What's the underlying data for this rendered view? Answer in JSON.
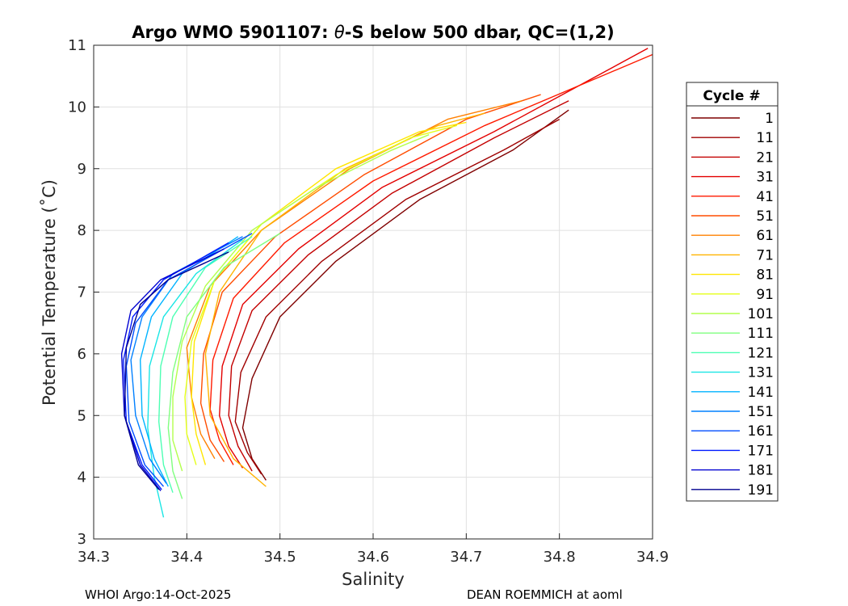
{
  "chart_data": {
    "type": "line",
    "title_prefix": "Argo WMO 5901107: ",
    "title_theta": "θ",
    "title_suffix": "-S below 500 dbar,  QC=(1,2)",
    "xlabel": "Salinity",
    "ylabel": "Potential Temperature (˚C)",
    "xlim": [
      34.3,
      34.9
    ],
    "ylim": [
      3,
      11
    ],
    "xticks": [
      "34.3",
      "34.4",
      "34.5",
      "34.6",
      "34.7",
      "34.8",
      "34.9"
    ],
    "yticks": [
      "3",
      "4",
      "5",
      "6",
      "7",
      "8",
      "9",
      "10",
      "11"
    ],
    "grid": true,
    "legend": {
      "title": "Cycle #",
      "position": "right-outside",
      "entries": [
        "1",
        "11",
        "21",
        "31",
        "41",
        "51",
        "61",
        "71",
        "81",
        "91",
        "101",
        "111",
        "121",
        "131",
        "141",
        "151",
        "161",
        "171",
        "181",
        "191"
      ],
      "colors": [
        "#7f0000",
        "#a00000",
        "#c30000",
        "#e30000",
        "#ff1a00",
        "#ff4d00",
        "#ff8000",
        "#ffb300",
        "#ffe600",
        "#e5ff1a",
        "#b3ff4d",
        "#80ff80",
        "#4dffb3",
        "#1ae6e5",
        "#00b3ff",
        "#0080ff",
        "#004dff",
        "#001aff",
        "#0000d1",
        "#00008f"
      ]
    },
    "series": [
      {
        "name": "1",
        "color": "#7f0000",
        "x": [
          34.485,
          34.47,
          34.46,
          34.47,
          34.5,
          34.56,
          34.65,
          34.75,
          34.81
        ],
        "y": [
          3.95,
          4.3,
          4.8,
          5.6,
          6.6,
          7.5,
          8.5,
          9.3,
          9.95
        ]
      },
      {
        "name": "11",
        "color": "#a00000",
        "x": [
          34.48,
          34.465,
          34.452,
          34.458,
          34.485,
          34.545,
          34.635,
          34.74,
          34.8
        ],
        "y": [
          4.05,
          4.4,
          4.9,
          5.7,
          6.6,
          7.5,
          8.5,
          9.3,
          9.8
        ]
      },
      {
        "name": "21",
        "color": "#c30000",
        "x": [
          34.47,
          34.455,
          34.445,
          34.448,
          34.47,
          34.53,
          34.62,
          34.73,
          34.81
        ],
        "y": [
          4.1,
          4.5,
          5.0,
          5.8,
          6.7,
          7.6,
          8.6,
          9.5,
          10.1
        ]
      },
      {
        "name": "31",
        "color": "#e30000",
        "x": [
          34.46,
          34.445,
          34.435,
          34.438,
          34.46,
          34.52,
          34.61,
          34.73,
          34.895
        ],
        "y": [
          4.15,
          4.5,
          5.0,
          5.8,
          6.8,
          7.7,
          8.7,
          9.6,
          10.95
        ]
      },
      {
        "name": "41",
        "color": "#ff1a00",
        "x": [
          34.45,
          34.435,
          34.425,
          34.428,
          34.45,
          34.505,
          34.6,
          34.72,
          34.9
        ],
        "y": [
          4.2,
          4.6,
          5.1,
          5.9,
          6.9,
          7.8,
          8.8,
          9.7,
          10.85
        ]
      },
      {
        "name": "51",
        "color": "#ff4d00",
        "x": [
          34.44,
          34.425,
          34.415,
          34.418,
          34.438,
          34.495,
          34.59,
          34.7,
          34.78
        ],
        "y": [
          4.25,
          4.6,
          5.2,
          6.0,
          7.0,
          7.9,
          8.9,
          9.8,
          10.2
        ]
      },
      {
        "name": "61",
        "color": "#ff8000",
        "x": [
          34.43,
          34.415,
          34.405,
          34.4,
          34.425,
          34.48,
          34.575,
          34.68,
          34.76
        ],
        "y": [
          4.3,
          4.7,
          5.3,
          6.1,
          7.1,
          8.0,
          9.0,
          9.8,
          10.1
        ]
      },
      {
        "name": "71",
        "color": "#ffb300",
        "x": [
          34.485,
          34.45,
          34.425,
          34.42,
          34.435,
          34.48,
          34.57,
          34.67,
          34.72
        ],
        "y": [
          3.85,
          4.3,
          5.0,
          6.0,
          7.0,
          8.0,
          9.0,
          9.7,
          9.9
        ]
      },
      {
        "name": "81",
        "color": "#ffe600",
        "x": [
          34.42,
          34.41,
          34.405,
          34.408,
          34.43,
          34.48,
          34.56,
          34.65,
          34.7
        ],
        "y": [
          4.2,
          4.7,
          5.3,
          6.2,
          7.2,
          8.1,
          9.0,
          9.6,
          9.75
        ]
      },
      {
        "name": "91",
        "color": "#e5ff1a",
        "x": [
          34.41,
          34.4,
          34.398,
          34.405,
          34.43,
          34.48,
          34.56,
          34.64,
          34.69
        ],
        "y": [
          4.2,
          4.7,
          5.3,
          6.2,
          7.2,
          8.1,
          8.9,
          9.5,
          9.7
        ]
      },
      {
        "name": "101",
        "color": "#b3ff4d",
        "x": [
          34.395,
          34.385,
          34.385,
          34.395,
          34.42,
          34.47,
          34.54,
          34.62,
          34.66
        ],
        "y": [
          4.1,
          4.6,
          5.3,
          6.2,
          7.1,
          8.0,
          8.7,
          9.3,
          9.55
        ]
      },
      {
        "name": "111",
        "color": "#80ff80",
        "x": [
          34.395,
          34.385,
          34.38,
          34.385,
          34.4,
          34.44,
          34.5
        ],
        "y": [
          3.65,
          4.1,
          4.8,
          5.7,
          6.6,
          7.4,
          7.95
        ]
      },
      {
        "name": "121",
        "color": "#4dffb3",
        "x": [
          34.385,
          34.375,
          34.37,
          34.372,
          34.385,
          34.42,
          34.47
        ],
        "y": [
          3.75,
          4.2,
          4.9,
          5.8,
          6.6,
          7.4,
          7.9
        ]
      },
      {
        "name": "131",
        "color": "#1ae6e5",
        "x": [
          34.375,
          34.365,
          34.358,
          34.36,
          34.375,
          34.41,
          34.46
        ],
        "y": [
          3.35,
          4.0,
          4.8,
          5.8,
          6.6,
          7.3,
          7.85
        ]
      },
      {
        "name": "141",
        "color": "#00b3ff",
        "x": [
          34.38,
          34.365,
          34.352,
          34.35,
          34.362,
          34.395,
          34.455
        ],
        "y": [
          3.85,
          4.3,
          5.0,
          5.9,
          6.6,
          7.3,
          7.9
        ]
      },
      {
        "name": "151",
        "color": "#0080ff",
        "x": [
          34.378,
          34.36,
          34.345,
          34.34,
          34.352,
          34.385,
          34.46
        ],
        "y": [
          3.9,
          4.3,
          5.0,
          5.9,
          6.6,
          7.3,
          7.9
        ]
      },
      {
        "name": "161",
        "color": "#004dff",
        "x": [
          34.375,
          34.355,
          34.338,
          34.335,
          34.345,
          34.38,
          34.47
        ],
        "y": [
          3.85,
          4.2,
          4.9,
          5.8,
          6.5,
          7.2,
          7.95
        ]
      },
      {
        "name": "171",
        "color": "#001aff",
        "x": [
          34.373,
          34.352,
          34.335,
          34.332,
          34.342,
          34.375,
          34.445
        ],
        "y": [
          3.8,
          4.2,
          4.9,
          5.9,
          6.6,
          7.2,
          7.8
        ]
      },
      {
        "name": "181",
        "color": "#0000d1",
        "x": [
          34.372,
          34.35,
          34.333,
          34.33,
          34.34,
          34.372,
          34.44
        ],
        "y": [
          3.78,
          4.2,
          5.0,
          6.0,
          6.7,
          7.2,
          7.7
        ]
      },
      {
        "name": "191",
        "color": "#00008f",
        "x": [
          34.37,
          34.348,
          34.333,
          34.335,
          34.35,
          34.38,
          34.445
        ],
        "y": [
          3.8,
          4.2,
          5.0,
          6.1,
          6.8,
          7.2,
          7.65
        ]
      }
    ]
  },
  "footer": {
    "left": "WHOI Argo:14-Oct-2025",
    "right": "DEAN ROEMMICH at aoml"
  }
}
